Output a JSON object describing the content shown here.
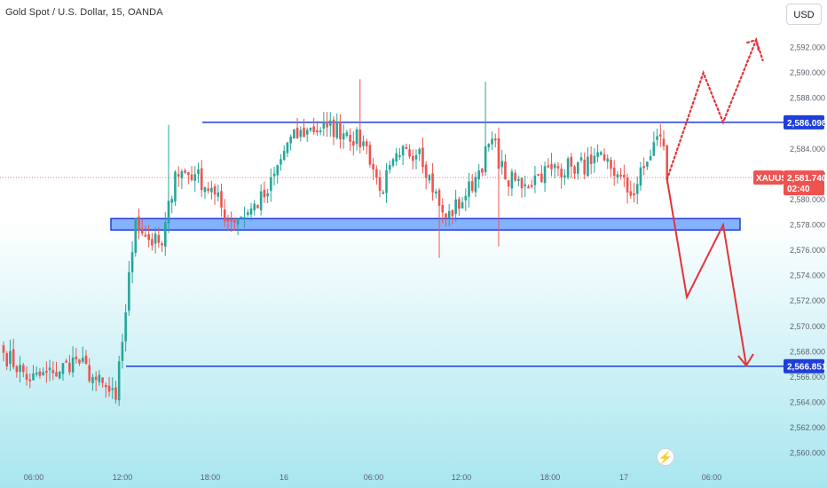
{
  "header": {
    "title": "Gold Spot / U.S. Dollar, 15, OANDA",
    "currency": "USD"
  },
  "colors": {
    "up": "#26a69a",
    "down": "#ef5350",
    "blue_line": "#1e3fd8",
    "zone_fill": "#6fa5ff",
    "projection": "#e5323a",
    "bg_top": "#ffffff",
    "bg_bottom": "#a8e6ef"
  },
  "icons": {
    "logo": "lightning-icon"
  },
  "chart_data": {
    "type": "candlestick",
    "ylim": [
      2559.9,
      2593.3
    ],
    "y_ticks": [
      "2,592.000",
      "2,590.000",
      "2,588.000",
      "2,586.000",
      "2,584.000",
      "2,582.000",
      "2,580.000",
      "2,578.000",
      "2,576.000",
      "2,574.000",
      "2,572.000",
      "2,570.000",
      "2,568.000",
      "2,566.000",
      "2,564.000",
      "2,562.000",
      "2,560.000"
    ],
    "x_ticks": [
      "06:00",
      "12:00",
      "18:00",
      "16",
      "06:00",
      "12:00",
      "18:00",
      "17",
      "06:00"
    ],
    "levels": {
      "resistance": {
        "price": 2586.098,
        "label": "2,586.098"
      },
      "target": {
        "price": 2566.851,
        "label": "2,566.851"
      },
      "demand_zone": [
        2577.6,
        2578.5
      ]
    },
    "current": {
      "symbol": "XAUUSD",
      "price": 2581.74,
      "price_label": "2,581.740",
      "countdown": "02:40"
    },
    "anchors": [
      [
        0,
        2567.9
      ],
      [
        8,
        2565.8
      ],
      [
        15,
        2566.3
      ],
      [
        22,
        2567.4
      ],
      [
        27,
        2566.0
      ],
      [
        34,
        2564.2
      ],
      [
        40,
        2578.5
      ],
      [
        44,
        2576.8
      ],
      [
        48,
        2576.4
      ],
      [
        52,
        2582.2
      ],
      [
        58,
        2582.0
      ],
      [
        64,
        2580.4
      ],
      [
        68,
        2578.3
      ],
      [
        74,
        2579.0
      ],
      [
        80,
        2580.5
      ],
      [
        86,
        2584.5
      ],
      [
        92,
        2585.5
      ],
      [
        98,
        2585.7
      ],
      [
        104,
        2585.3
      ],
      [
        110,
        2584.2
      ],
      [
        114,
        2580.7
      ],
      [
        120,
        2583.5
      ],
      [
        126,
        2584.0
      ],
      [
        132,
        2579.5
      ],
      [
        134,
        2578.5
      ],
      [
        140,
        2580.3
      ],
      [
        144,
        2582.3
      ],
      [
        148,
        2584.8
      ],
      [
        152,
        2581.6
      ],
      [
        158,
        2581.2
      ],
      [
        162,
        2582.0
      ],
      [
        166,
        2582.4
      ],
      [
        172,
        2582.6
      ],
      [
        178,
        2582.8
      ],
      [
        182,
        2583.1
      ],
      [
        186,
        2582.0
      ],
      [
        190,
        2580.3
      ],
      [
        195,
        2583.0
      ],
      [
        198,
        2585.0
      ],
      [
        200,
        2584.2
      ],
      [
        201,
        2581.6
      ]
    ],
    "projection": {
      "bearish": [
        [
          201,
          2581.6
        ],
        [
          207,
          2572.3
        ],
        [
          218,
          2578.0
        ],
        [
          225,
          2566.9
        ]
      ],
      "bullish": [
        [
          201,
          2581.6
        ],
        [
          212,
          2590.0
        ],
        [
          218,
          2586.1
        ],
        [
          228,
          2592.6
        ],
        [
          230,
          2591.0
        ]
      ]
    }
  }
}
